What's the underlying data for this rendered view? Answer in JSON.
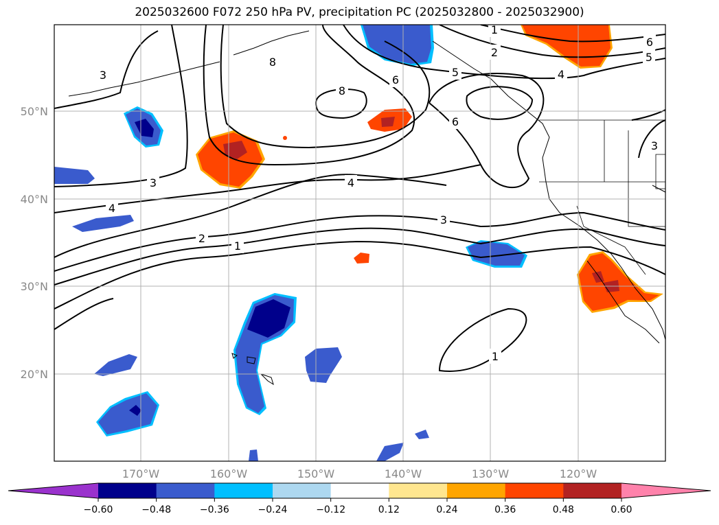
{
  "title": "2025032600 F072 250 hPa PV, precipitation PC (2025032800 - 2025032900)",
  "lat_labels": [
    "50°N",
    "40°N",
    "30°N",
    "20°N"
  ],
  "lon_labels": [
    "170°W",
    "160°W",
    "150°W",
    "140°W",
    "130°W",
    "120°W"
  ],
  "contour_labels": [
    "3",
    "8",
    "1",
    "6",
    "2",
    "5",
    "4",
    "6",
    "4",
    "3",
    "8",
    "6",
    "4",
    "3",
    "2",
    "1",
    "1",
    "5",
    "3"
  ],
  "colorbar": {
    "ticks": [
      "−0.60",
      "−0.48",
      "−0.36",
      "−0.24",
      "−0.12",
      "0.12",
      "0.24",
      "0.36",
      "0.48",
      "0.60"
    ],
    "colors": [
      "#9a32cd",
      "#00008b",
      "#3a5bcd",
      "#00bfff",
      "#add8f0",
      "#ffffff",
      "#ffe68f",
      "#ffa500",
      "#ff4500",
      "#b22222",
      "#ff82ab"
    ]
  },
  "colors": {
    "neg_strong": "#00008b",
    "neg_mid": "#3a5bcd",
    "neg_light": "#00bfff",
    "pos_mid": "#ff4500",
    "pos_strong": "#b22222",
    "pos_light": "#ffa500"
  }
}
